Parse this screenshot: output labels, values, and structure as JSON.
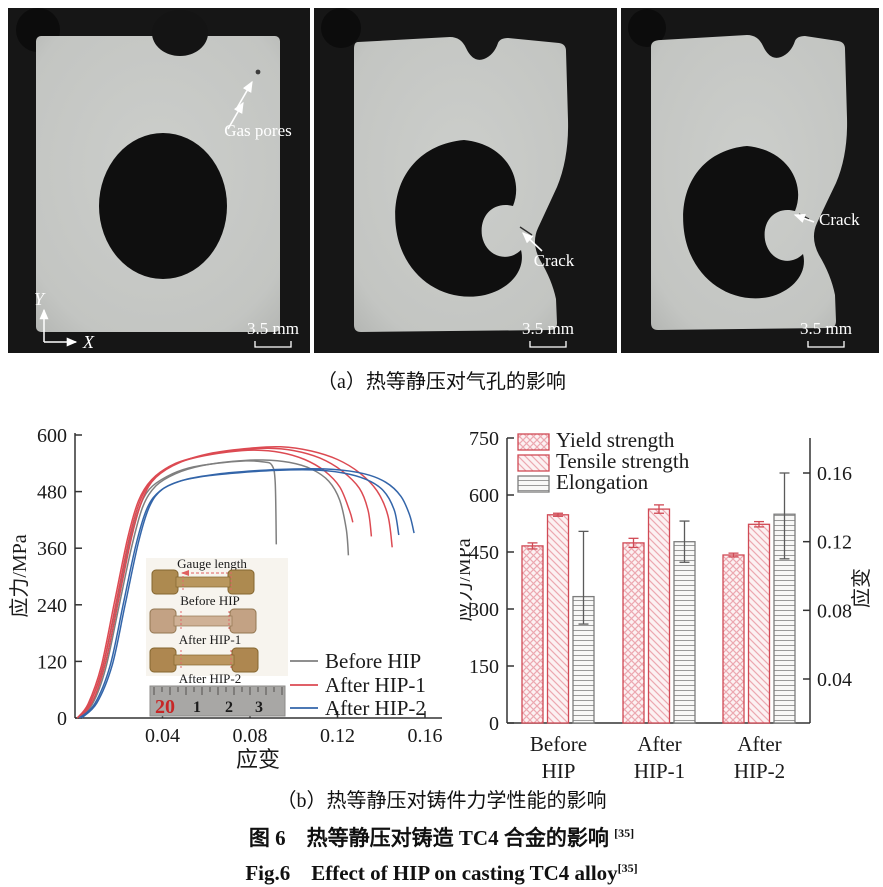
{
  "figure": {
    "caption_a": "（a）热等静压对气孔的影响",
    "caption_b": "（b）热等静压对铸件力学性能的影响",
    "caption_cn": "图 6　热等静压对铸造 TC4 合金的影响 ",
    "caption_cn_ref": "[35]",
    "caption_en": "Fig.6　Effect of HIP on casting TC4 alloy",
    "caption_en_ref": "[35]"
  },
  "xray_panels": [
    {
      "name": "before-hip-ct",
      "annotation": "Gas pores",
      "scale_label": "3.5 mm",
      "axis_y": "Y",
      "axis_x": "X"
    },
    {
      "name": "after-hip-1-ct",
      "annotation": "Crack",
      "scale_label": "3.5 mm"
    },
    {
      "name": "after-hip-2-ct",
      "annotation": "Crack",
      "scale_label": "3.5 mm"
    }
  ],
  "chart_data": [
    {
      "type": "line",
      "title": "",
      "xlabel": "应变",
      "ylabel": "应力/MPa",
      "xlim": [
        0,
        0.168
      ],
      "ylim": [
        0,
        600
      ],
      "xticks": [
        "0.04",
        "0.08",
        "0.12",
        "0.16"
      ],
      "yticks": [
        "0",
        "120",
        "240",
        "360",
        "480",
        "600"
      ],
      "grid": false,
      "legend_position": "lower right",
      "series": [
        {
          "name": "Before HIP",
          "color": "#7f7f7f",
          "curves": [
            [
              [
                0.001,
                0
              ],
              [
                0.006,
                25
              ],
              [
                0.012,
                95
              ],
              [
                0.018,
                220
              ],
              [
                0.024,
                355
              ],
              [
                0.029,
                440
              ],
              [
                0.034,
                485
              ],
              [
                0.042,
                512
              ],
              [
                0.052,
                530
              ],
              [
                0.065,
                540
              ],
              [
                0.078,
                545
              ],
              [
                0.086,
                543
              ],
              [
                0.09,
                536
              ],
              [
                0.0915,
                500
              ],
              [
                0.092,
                368
              ]
            ],
            [
              [
                0.002,
                0
              ],
              [
                0.008,
                30
              ],
              [
                0.014,
                105
              ],
              [
                0.02,
                235
              ],
              [
                0.026,
                365
              ],
              [
                0.031,
                448
              ],
              [
                0.037,
                492
              ],
              [
                0.046,
                518
              ],
              [
                0.058,
                535
              ],
              [
                0.072,
                544
              ],
              [
                0.086,
                547
              ],
              [
                0.098,
                542
              ],
              [
                0.108,
                528
              ],
              [
                0.116,
                502
              ],
              [
                0.121,
                462
              ],
              [
                0.124,
                400
              ],
              [
                0.125,
                345
              ]
            ]
          ]
        },
        {
          "name": "After HIP-1",
          "color": "#dc4a52",
          "curves": [
            [
              [
                0.001,
                0
              ],
              [
                0.006,
                30
              ],
              [
                0.012,
                110
              ],
              [
                0.018,
                245
              ],
              [
                0.024,
                380
              ],
              [
                0.029,
                460
              ],
              [
                0.035,
                505
              ],
              [
                0.044,
                535
              ],
              [
                0.056,
                553
              ],
              [
                0.07,
                564
              ],
              [
                0.082,
                568
              ],
              [
                0.094,
                563
              ],
              [
                0.105,
                548
              ],
              [
                0.114,
                524
              ],
              [
                0.121,
                490
              ],
              [
                0.1255,
                440
              ],
              [
                0.127,
                415
              ]
            ],
            [
              [
                0.002,
                0
              ],
              [
                0.007,
                32
              ],
              [
                0.013,
                115
              ],
              [
                0.019,
                250
              ],
              [
                0.025,
                385
              ],
              [
                0.03,
                463
              ],
              [
                0.036,
                508
              ],
              [
                0.046,
                540
              ],
              [
                0.06,
                558
              ],
              [
                0.075,
                568
              ],
              [
                0.088,
                572
              ],
              [
                0.1,
                567
              ],
              [
                0.112,
                551
              ],
              [
                0.122,
                524
              ],
              [
                0.13,
                487
              ],
              [
                0.134,
                440
              ],
              [
                0.1355,
                385
              ]
            ],
            [
              [
                0.002,
                0
              ],
              [
                0.008,
                35
              ],
              [
                0.014,
                118
              ],
              [
                0.02,
                252
              ],
              [
                0.026,
                386
              ],
              [
                0.031,
                465
              ],
              [
                0.037,
                510
              ],
              [
                0.048,
                542
              ],
              [
                0.063,
                562
              ],
              [
                0.08,
                572
              ],
              [
                0.094,
                575
              ],
              [
                0.108,
                566
              ],
              [
                0.12,
                548
              ],
              [
                0.13,
                520
              ],
              [
                0.138,
                482
              ],
              [
                0.143,
                430
              ],
              [
                0.145,
                362
              ]
            ]
          ]
        },
        {
          "name": "After HIP-2",
          "color": "#3365a9",
          "curves": [
            [
              [
                0.002,
                0
              ],
              [
                0.009,
                30
              ],
              [
                0.016,
                110
              ],
              [
                0.022,
                240
              ],
              [
                0.028,
                370
              ],
              [
                0.033,
                445
              ],
              [
                0.039,
                482
              ],
              [
                0.048,
                502
              ],
              [
                0.06,
                513
              ],
              [
                0.075,
                520
              ],
              [
                0.092,
                525
              ],
              [
                0.108,
                526
              ],
              [
                0.122,
                520
              ],
              [
                0.133,
                506
              ],
              [
                0.141,
                482
              ],
              [
                0.146,
                440
              ],
              [
                0.148,
                388
              ]
            ],
            [
              [
                0.003,
                0
              ],
              [
                0.01,
                32
              ],
              [
                0.017,
                112
              ],
              [
                0.023,
                242
              ],
              [
                0.029,
                372
              ],
              [
                0.034,
                448
              ],
              [
                0.04,
                485
              ],
              [
                0.05,
                505
              ],
              [
                0.065,
                517
              ],
              [
                0.082,
                524
              ],
              [
                0.1,
                528
              ],
              [
                0.118,
                527
              ],
              [
                0.132,
                518
              ],
              [
                0.142,
                500
              ],
              [
                0.149,
                470
              ],
              [
                0.153,
                430
              ],
              [
                0.155,
                392
              ]
            ]
          ]
        }
      ],
      "inset": {
        "gauge_label": "Gauge length",
        "specimen_labels": [
          "Before HIP",
          "After HIP-1",
          "After HIP-2"
        ],
        "ruler_numbers": [
          "20",
          "1",
          "2",
          "3"
        ]
      }
    },
    {
      "type": "bar",
      "categories": [
        "Before HIP",
        "After HIP-1",
        "After HIP-2"
      ],
      "category_lines": [
        [
          "Before",
          "HIP"
        ],
        [
          "After",
          "HIP-1"
        ],
        [
          "After",
          "HIP-2"
        ]
      ],
      "ylabel_left": "应力/MPa",
      "ylabel_right": "应变",
      "ylim_left": [
        0,
        750
      ],
      "yticks_left": [
        "0",
        "150",
        "300",
        "450",
        "600",
        "750"
      ],
      "ylim_right": [
        0.04,
        0.16
      ],
      "yticks_right": [
        "0.04",
        "0.08",
        "0.12",
        "0.16"
      ],
      "series": [
        {
          "name": "Yield strength",
          "axis": "left",
          "pattern": "cross",
          "edge": "#d04a55",
          "values": [
            466,
            474,
            442
          ],
          "errors_up": [
            8,
            12,
            5
          ],
          "errors_down": [
            8,
            12,
            5
          ]
        },
        {
          "name": "Tensile strength",
          "axis": "left",
          "pattern": "diag",
          "edge": "#d04a55",
          "values": [
            548,
            563,
            523
          ],
          "errors_up": [
            4,
            11,
            7
          ],
          "errors_down": [
            4,
            11,
            7
          ]
        },
        {
          "name": "Elongation",
          "axis": "right",
          "pattern": "horiz",
          "edge": "#7c7c7c",
          "values": [
            0.088,
            0.12,
            0.136
          ],
          "errors_up": [
            0.038,
            0.012,
            0.024
          ],
          "errors_down": [
            0.016,
            0.012,
            0.026
          ]
        }
      ]
    }
  ],
  "colors": {
    "before_hip": "#7f7f7f",
    "after_hip_1": "#dc4a52",
    "after_hip_2": "#3365a9",
    "bar_edge_red": "#d04a55",
    "bar_edge_gray": "#7c7c7c"
  }
}
